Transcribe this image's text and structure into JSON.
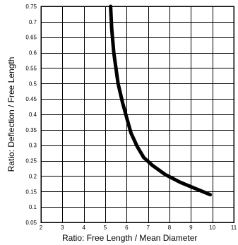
{
  "chart_data": {
    "type": "line",
    "title": "",
    "xlabel": "Ratio: Free Length / Mean Diameter",
    "ylabel": "Ratio: Deflection / Free Length",
    "xlim": [
      2,
      11
    ],
    "ylim": [
      0.05,
      0.75
    ],
    "grid": true,
    "legend": "none",
    "x_ticks": [
      "2",
      "3",
      "4",
      "5",
      "6",
      "7",
      "8",
      "9",
      "10",
      "11"
    ],
    "y_ticks": [
      "0.05",
      "0.1",
      "0.15",
      "0.2",
      "0.25",
      "0.3",
      "0.35",
      "0.4",
      "0.45",
      "0.5",
      "0.55",
      "0.6",
      "0.65",
      "0.7",
      "0.75"
    ],
    "series": [
      {
        "x": [
          5.25,
          5.3,
          5.4,
          5.6,
          5.8,
          6.0,
          6.2,
          6.5,
          6.8,
          7.2,
          7.8,
          8.5,
          9.2,
          9.9
        ],
        "y": [
          0.75,
          0.68,
          0.6,
          0.5,
          0.44,
          0.39,
          0.34,
          0.295,
          0.26,
          0.235,
          0.205,
          0.18,
          0.16,
          0.14
        ]
      }
    ],
    "colors": {
      "line": "#000000",
      "grid": "#000000",
      "background": "#ffffff"
    }
  }
}
